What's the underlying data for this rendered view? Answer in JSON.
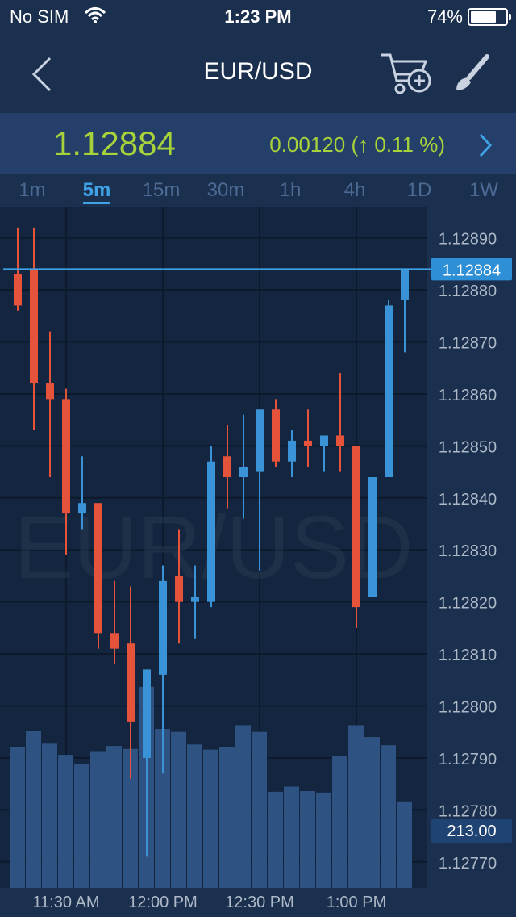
{
  "status_bar": {
    "carrier": "No SIM",
    "time": "1:23 PM",
    "battery": "74%",
    "battery_level": 0.74
  },
  "nav": {
    "title": "EUR/USD",
    "icons": [
      "back-icon",
      "cart-add-icon",
      "brush-icon"
    ]
  },
  "quote": {
    "price": "1.12884",
    "change": "0.00120 (↑ 0.11 %)",
    "color": "#a8d23a"
  },
  "timeframes": [
    {
      "label": "1m",
      "active": false
    },
    {
      "label": "5m",
      "active": true
    },
    {
      "label": "15m",
      "active": false
    },
    {
      "label": "30m",
      "active": false
    },
    {
      "label": "1h",
      "active": false
    },
    {
      "label": "4h",
      "active": false
    },
    {
      "label": "1D",
      "active": false
    },
    {
      "label": "1W",
      "active": false
    }
  ],
  "chart_data": {
    "type": "candlestick",
    "watermark": "EUR/USD",
    "y_ticks": [
      1.1289,
      1.1288,
      1.1287,
      1.1286,
      1.1285,
      1.1284,
      1.1283,
      1.1282,
      1.1281,
      1.128,
      1.1279,
      1.1278,
      1.1277
    ],
    "y_tick_labels": [
      "1.12890",
      "1.12880",
      "1.12870",
      "1.12860",
      "1.12850",
      "1.12840",
      "1.12830",
      "1.12820",
      "1.12810",
      "1.12800",
      "1.12790",
      "1.12780",
      "1.12770"
    ],
    "ylim": [
      1.12765,
      1.12896
    ],
    "x_tick_labels": [
      "11:30 AM",
      "12:00 PM",
      "12:30 PM",
      "1:00 PM"
    ],
    "x_tick_index": [
      2,
      8,
      14,
      20
    ],
    "current_price": 1.12884,
    "current_price_label": "1.12884",
    "volume_label": "213.00",
    "volume_max": 310,
    "up_color": "#3a93d6",
    "down_color": "#e5533a",
    "volume_color": "#2e5383",
    "line_color": "#3fa2e6",
    "candles": [
      {
        "o": 1.12883,
        "h": 1.12892,
        "l": 1.12876,
        "c": 1.12877
      },
      {
        "o": 1.12884,
        "h": 1.12892,
        "l": 1.12853,
        "c": 1.12862
      },
      {
        "o": 1.12862,
        "h": 1.12872,
        "l": 1.12844,
        "c": 1.12859
      },
      {
        "o": 1.12859,
        "h": 1.12861,
        "l": 1.12829,
        "c": 1.12837
      },
      {
        "o": 1.12837,
        "h": 1.12848,
        "l": 1.12834,
        "c": 1.12839
      },
      {
        "o": 1.12839,
        "h": 1.12839,
        "l": 1.12811,
        "c": 1.12814
      },
      {
        "o": 1.12814,
        "h": 1.12824,
        "l": 1.12808,
        "c": 1.12811
      },
      {
        "o": 1.12812,
        "h": 1.12823,
        "l": 1.12786,
        "c": 1.12797
      },
      {
        "o": 1.1279,
        "h": 1.12807,
        "l": 1.12771,
        "c": 1.12807
      },
      {
        "o": 1.12806,
        "h": 1.12827,
        "l": 1.12787,
        "c": 1.12824
      },
      {
        "o": 1.12825,
        "h": 1.12834,
        "l": 1.12812,
        "c": 1.1282
      },
      {
        "o": 1.1282,
        "h": 1.12827,
        "l": 1.12813,
        "c": 1.12821
      },
      {
        "o": 1.1282,
        "h": 1.1285,
        "l": 1.12819,
        "c": 1.12847
      },
      {
        "o": 1.12848,
        "h": 1.12854,
        "l": 1.12838,
        "c": 1.12844
      },
      {
        "o": 1.12844,
        "h": 1.12856,
        "l": 1.12836,
        "c": 1.12846
      },
      {
        "o": 1.12845,
        "h": 1.12857,
        "l": 1.12826,
        "c": 1.12857
      },
      {
        "o": 1.12857,
        "h": 1.12859,
        "l": 1.12846,
        "c": 1.12847
      },
      {
        "o": 1.12847,
        "h": 1.12853,
        "l": 1.12844,
        "c": 1.12851
      },
      {
        "o": 1.12851,
        "h": 1.12857,
        "l": 1.12846,
        "c": 1.1285
      },
      {
        "o": 1.1285,
        "h": 1.12852,
        "l": 1.12845,
        "c": 1.12852
      },
      {
        "o": 1.12852,
        "h": 1.12864,
        "l": 1.12845,
        "c": 1.1285
      },
      {
        "o": 1.1285,
        "h": 1.1285,
        "l": 1.12815,
        "c": 1.12819
      },
      {
        "o": 1.12821,
        "h": 1.12844,
        "l": 1.12821,
        "c": 1.12844
      },
      {
        "o": 1.12844,
        "h": 1.12878,
        "l": 1.12844,
        "c": 1.12877
      },
      {
        "o": 1.12878,
        "h": 1.12884,
        "l": 1.12868,
        "c": 1.12884
      }
    ],
    "volumes": [
      190,
      212,
      195,
      180,
      167,
      185,
      192,
      188,
      272,
      215,
      211,
      194,
      187,
      190,
      220,
      211,
      130,
      137,
      131,
      129,
      178,
      220,
      204,
      193,
      117
    ]
  }
}
